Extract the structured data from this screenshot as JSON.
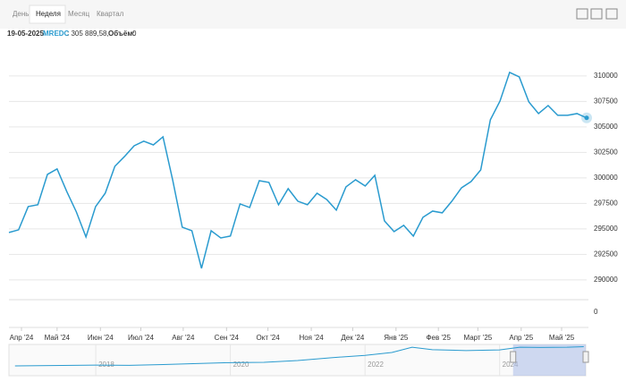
{
  "toolbar": {
    "tabs": [
      "День",
      "Неделя",
      "Месяц",
      "Квартал"
    ],
    "selected": 1
  },
  "info": {
    "date": "19-05-2025",
    "symbol": "MREDC",
    "value_text": ": 305 889,58,",
    "volume_label": "Объём:",
    "volume": "0"
  },
  "chart_data": [
    {
      "type": "line",
      "color": "#2a9bcf",
      "grid": true,
      "series": [
        {
          "values": [
            294650,
            294910,
            297190,
            297370,
            300350,
            300880,
            298680,
            296670,
            294210,
            297190,
            298500,
            301140,
            302100,
            303150,
            303600,
            303240,
            304030,
            299820,
            295170,
            294820,
            291140,
            294820,
            294120,
            294300,
            297450,
            297100,
            299730,
            299560,
            297370,
            298950,
            297720,
            297370,
            298500,
            297890,
            296840,
            299120,
            299820,
            299210,
            300260,
            295790,
            294740,
            295350,
            294300,
            296140,
            296750,
            296580,
            297720,
            299030,
            299650,
            300790,
            305700,
            307540,
            310350,
            309910,
            307450,
            306310,
            307100,
            306140,
            306140,
            306310,
            305890
          ]
        }
      ],
      "xlim": [
        0,
        60
      ],
      "ylim": [
        288500,
        313500
      ],
      "yticks": [
        290000,
        292500,
        295000,
        297500,
        300000,
        302500,
        305000,
        307500,
        310000
      ],
      "xticks": [
        {
          "value": 1.3,
          "label": "Апр '24"
        },
        {
          "value": 5.0,
          "label": "Май '24"
        },
        {
          "value": 9.5,
          "label": "Июн '24"
        },
        {
          "value": 13.7,
          "label": "Июл '24"
        },
        {
          "value": 18.1,
          "label": "Авг '24"
        },
        {
          "value": 22.6,
          "label": "Сен '24"
        },
        {
          "value": 26.9,
          "label": "Окт '24"
        },
        {
          "value": 31.4,
          "label": "Ноя '24"
        },
        {
          "value": 35.7,
          "label": "Дек '24"
        },
        {
          "value": 40.2,
          "label": "Янв '25"
        },
        {
          "value": 44.6,
          "label": "Фев '25"
        },
        {
          "value": 48.7,
          "label": "Март '25"
        },
        {
          "value": 53.2,
          "label": "Апр '25"
        },
        {
          "value": 57.4,
          "label": "Май '25"
        }
      ],
      "volume_ticks": [
        0
      ]
    },
    {
      "type": "line",
      "color": "#2a9bcf",
      "x": [
        2016.8,
        2017.5,
        2018,
        2018.5,
        2019,
        2019.5,
        2020,
        2020.5,
        2021,
        2021.5,
        2022,
        2022.4,
        2022.7,
        2023,
        2023.5,
        2024,
        2024.3,
        2024.6,
        2025,
        2025.25
      ],
      "values": [
        104000,
        108000,
        112000,
        110000,
        118000,
        128000,
        138000,
        142000,
        160000,
        190000,
        215000,
        245000,
        300000,
        275000,
        265000,
        272000,
        300000,
        298000,
        300000,
        306000
      ],
      "xlim": [
        2016.71,
        2025.28
      ],
      "ylim": [
        0,
        330000
      ],
      "xticks": [
        2018,
        2020,
        2022,
        2024
      ],
      "window": [
        2024.2,
        2025.28
      ]
    }
  ]
}
